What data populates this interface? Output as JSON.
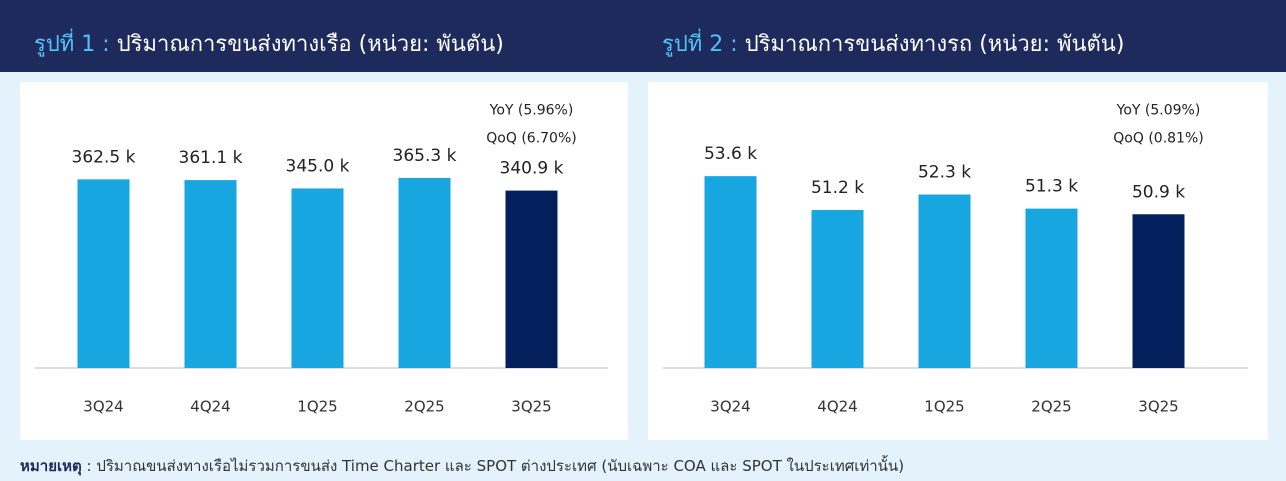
{
  "header": {
    "bar_color": "#1f2a5c"
  },
  "chart_data": [
    {
      "type": "bar",
      "title_prefix": "รูปที่ 1 :",
      "title": "ปริมาณการขนส่งทางเรือ (หน่วย: พันตัน)",
      "categories": [
        "3Q24",
        "4Q24",
        "1Q25",
        "2Q25",
        "3Q25"
      ],
      "values": [
        362.5,
        361.1,
        345.0,
        365.3,
        340.9
      ],
      "value_labels": [
        "362.5 k",
        "361.1 k",
        "345.0 k",
        "365.3 k",
        "340.9 k"
      ],
      "colors": [
        "#17a6e0",
        "#17a6e0",
        "#17a6e0",
        "#17a6e0",
        "#03205c"
      ],
      "ylim": [
        0,
        515
      ],
      "annotations": [
        "YoY (5.96%)",
        "QoQ (6.70%)"
      ]
    },
    {
      "type": "bar",
      "title_prefix": "รูปที่ 2 :",
      "title": "ปริมาณการขนส่งทางรถ (หน่วย: พันตัน)",
      "categories": [
        "3Q24",
        "4Q24",
        "1Q25",
        "2Q25",
        "3Q25"
      ],
      "values": [
        53.6,
        51.2,
        52.3,
        51.3,
        50.9
      ],
      "value_labels": [
        "53.6 k",
        "51.2 k",
        "52.3 k",
        "51.3 k",
        "50.9 k"
      ],
      "colors": [
        "#17a6e0",
        "#17a6e0",
        "#17a6e0",
        "#17a6e0",
        "#03205c"
      ],
      "ylim": [
        40,
        59
      ],
      "annotations": [
        "YoY (5.09%)",
        "QoQ (0.81%)"
      ]
    }
  ],
  "note": {
    "label": "หมายเหตุ",
    "text": " : ปริมาณขนส่งทางเรือไม่รวมการขนส่ง Time Charter และ SPOT ต่างประเทศ (นับเฉพาะ COA และ SPOT ในประเทศเท่านั้น)"
  }
}
